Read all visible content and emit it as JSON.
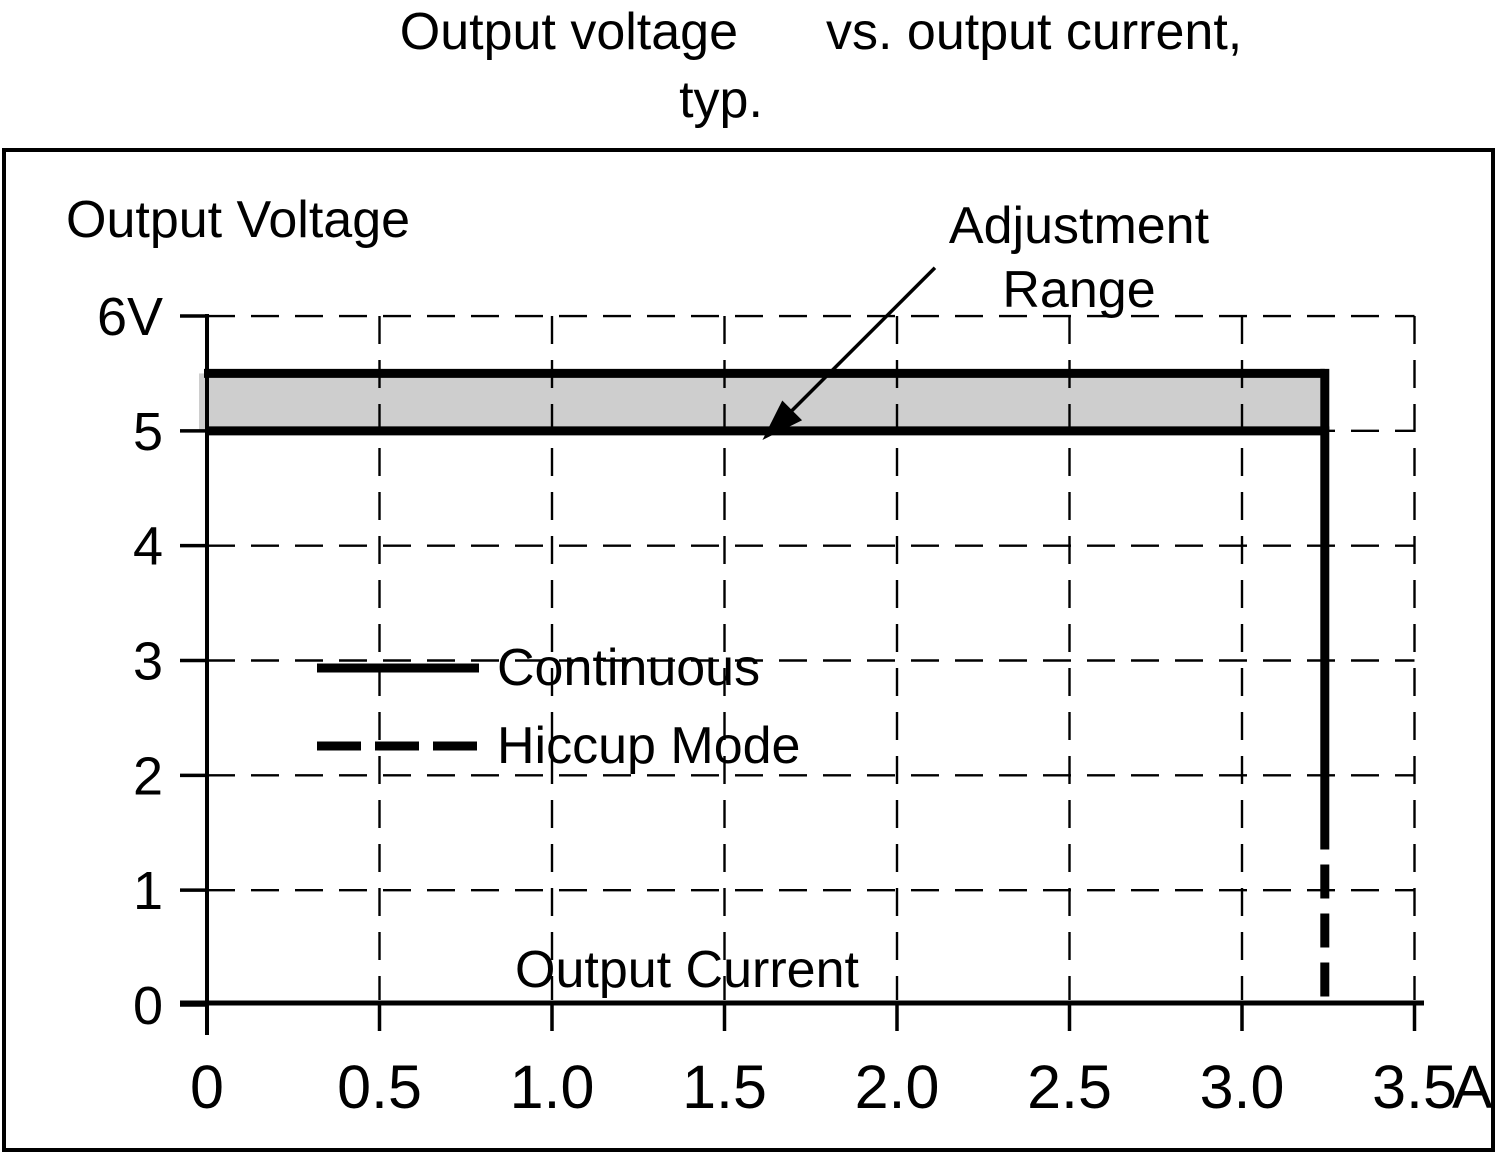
{
  "title": {
    "line1_left": "Output voltage",
    "line1_right": "vs. output current,",
    "line2": "typ."
  },
  "chart": {
    "y_axis_label": "Output Voltage",
    "x_axis_label": "Output Current",
    "annotation": {
      "line1": "Adjustment",
      "line2": "Range"
    },
    "legend": [
      {
        "label": "Continuous",
        "style": "solid"
      },
      {
        "label": "Hiccup Mode",
        "style": "dashed"
      }
    ]
  },
  "chart_data": {
    "type": "line",
    "title": "Output voltage vs. output current, typ.",
    "xlabel": "Output Current",
    "ylabel": "Output Voltage",
    "x_unit": "A",
    "y_unit": "V",
    "xlim": [
      0,
      3.5
    ],
    "ylim": [
      0,
      6
    ],
    "x_ticks": [
      0,
      0.5,
      1.0,
      1.5,
      2.0,
      2.5,
      3.0,
      3.5
    ],
    "x_tick_labels": [
      "0",
      "0.5",
      "1.0",
      "1.5",
      "2.0",
      "2.5",
      "3.0",
      "3.5"
    ],
    "y_ticks": [
      0,
      1,
      2,
      3,
      4,
      5,
      6
    ],
    "y_tick_labels": [
      "0",
      "1",
      "2",
      "3",
      "4",
      "5",
      "6V"
    ],
    "grid": true,
    "grid_style": "dashed",
    "colors": {
      "line": "#000000",
      "band_fill": "#cecece",
      "background": "#ffffff"
    },
    "series": [
      {
        "name": "Continuous",
        "style": "solid",
        "points": [
          [
            0,
            5.0
          ],
          [
            3.24,
            5.0
          ],
          [
            3.24,
            1.65
          ]
        ]
      },
      {
        "name": "Hiccup Mode",
        "style": "dashed",
        "points": [
          [
            3.24,
            1.65
          ],
          [
            3.24,
            0
          ]
        ]
      }
    ],
    "adjustment_band": {
      "label": "Adjustment Range",
      "x_range": [
        0,
        3.24
      ],
      "y_range": [
        5.0,
        5.5
      ]
    },
    "annotation_arrow": {
      "from": [
        2.11,
        6.42
      ],
      "to": [
        1.61,
        4.92
      ]
    }
  }
}
